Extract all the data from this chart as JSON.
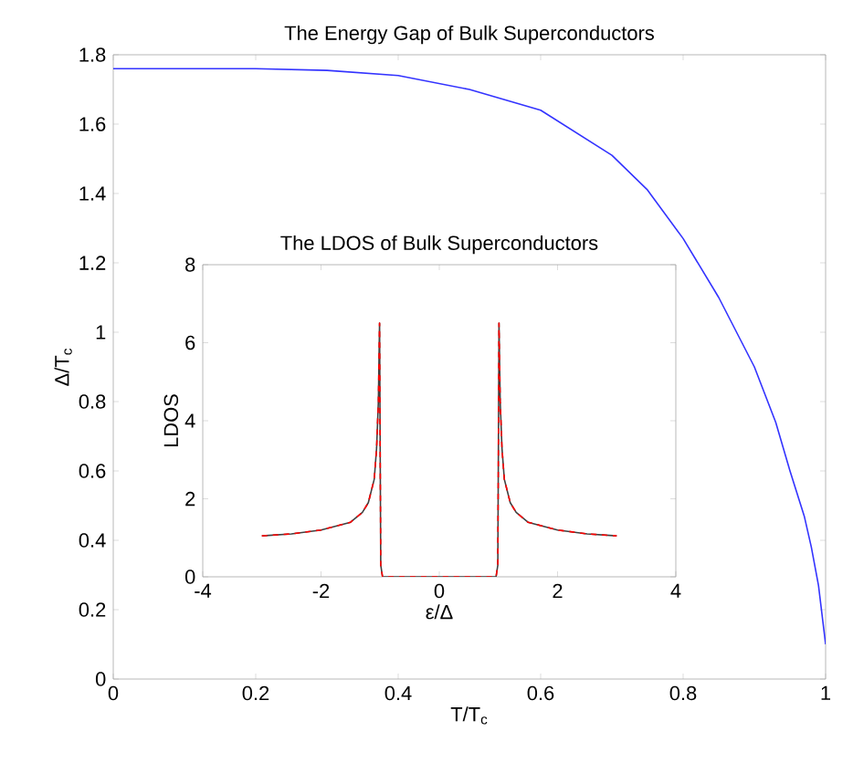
{
  "chart_data": [
    {
      "type": "line",
      "title": "The Energy Gap of Bulk Superconductors",
      "xlabel": "T/T$_{c}$",
      "ylabel": "Δ/T$_{c}$",
      "xlim": [
        0,
        1
      ],
      "ylim": [
        0,
        1.8
      ],
      "xticks": [
        0,
        0.2,
        0.4,
        0.6,
        0.8,
        1
      ],
      "yticks": [
        0,
        0.2,
        0.4,
        0.6,
        0.8,
        1,
        1.2,
        1.4,
        1.6,
        1.8
      ],
      "x": [
        0,
        0.1,
        0.2,
        0.3,
        0.4,
        0.5,
        0.6,
        0.7,
        0.75,
        0.8,
        0.85,
        0.9,
        0.93,
        0.95,
        0.97,
        0.98,
        0.99,
        1.0
      ],
      "series": [
        {
          "color": "#3333ff",
          "line_style": "solid",
          "values": [
            1.76,
            1.76,
            1.76,
            1.755,
            1.74,
            1.7,
            1.64,
            1.51,
            1.41,
            1.27,
            1.1,
            0.9,
            0.74,
            0.6,
            0.47,
            0.38,
            0.27,
            0.1
          ]
        }
      ]
    },
    {
      "type": "line",
      "title": "The LDOS of Bulk Superconductors",
      "xlabel": "ε/Δ",
      "ylabel": "LDOS",
      "xlim": [
        -4,
        4
      ],
      "ylim": [
        0,
        8
      ],
      "xticks": [
        -4,
        -2,
        0,
        2,
        4
      ],
      "yticks": [
        0,
        2,
        4,
        6,
        8
      ],
      "x": [
        -3,
        -2.5,
        -2,
        -1.5,
        -1.3,
        -1.2,
        -1.1,
        -1.06,
        -1.03,
        -1.01,
        -0.99,
        -0.96,
        0.96,
        0.99,
        1.01,
        1.03,
        1.06,
        1.1,
        1.2,
        1.3,
        1.5,
        2,
        2.5,
        3
      ],
      "series": [
        {
          "color": "#404040",
          "line_style": "solid",
          "values": [
            1.05,
            1.1,
            1.2,
            1.4,
            1.65,
            1.9,
            2.5,
            3.3,
            4.5,
            6.5,
            0.3,
            0,
            0,
            0.3,
            6.5,
            4.5,
            3.3,
            2.5,
            1.9,
            1.65,
            1.4,
            1.2,
            1.1,
            1.05
          ]
        },
        {
          "color": "#ff0000",
          "line_style": "dashed",
          "values": [
            1.05,
            1.1,
            1.2,
            1.4,
            1.65,
            1.9,
            2.5,
            3.3,
            4.5,
            6.5,
            0.3,
            0,
            0,
            0.3,
            6.5,
            4.5,
            3.3,
            2.5,
            1.9,
            1.65,
            1.4,
            1.2,
            1.1,
            1.05
          ]
        }
      ]
    }
  ]
}
